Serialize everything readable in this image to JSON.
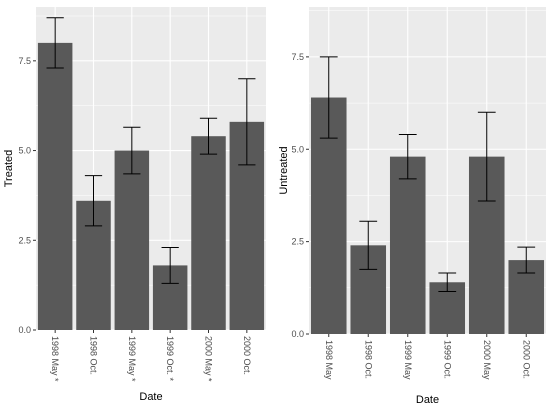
{
  "chart_data": [
    {
      "type": "bar",
      "categories": [
        "1998 May *",
        "1998 Oct.",
        "1999 May *",
        "1999 Oct. *",
        "2000 May *",
        "2000 Oct."
      ],
      "values": [
        8.0,
        3.6,
        5.0,
        1.8,
        5.4,
        5.8
      ],
      "error_low": [
        7.3,
        2.9,
        4.35,
        1.3,
        4.9,
        4.6
      ],
      "error_high": [
        8.7,
        4.3,
        5.65,
        2.3,
        5.9,
        7.0
      ],
      "xlabel": "Date",
      "ylabel": "Treated",
      "ylim": [
        0,
        9.0
      ],
      "yticks": [
        0.0,
        2.5,
        5.0,
        7.5
      ],
      "ytick_labels": [
        "0.0",
        "2.5",
        "5.0",
        "7.5"
      ],
      "grid": true,
      "bar_color": "#595959",
      "panel_color": "#ebebeb"
    },
    {
      "type": "bar",
      "categories": [
        "1998 May",
        "1998 Oct.",
        "1999 May",
        "1999 Oct.",
        "2000 May",
        "2000 Oct."
      ],
      "values": [
        6.4,
        2.4,
        4.8,
        1.4,
        4.8,
        2.0
      ],
      "error_low": [
        5.3,
        1.75,
        4.2,
        1.15,
        3.6,
        1.65
      ],
      "error_high": [
        7.5,
        3.05,
        5.4,
        1.65,
        6.0,
        2.35
      ],
      "xlabel": "Date",
      "ylabel": "Untreated",
      "ylim": [
        0,
        8.85
      ],
      "yticks": [
        0.0,
        2.5,
        5.0,
        7.5
      ],
      "ytick_labels": [
        "0.0",
        "2.5",
        "5.0",
        "7.5"
      ],
      "grid": true,
      "bar_color": "#595959",
      "panel_color": "#ebebeb"
    }
  ]
}
